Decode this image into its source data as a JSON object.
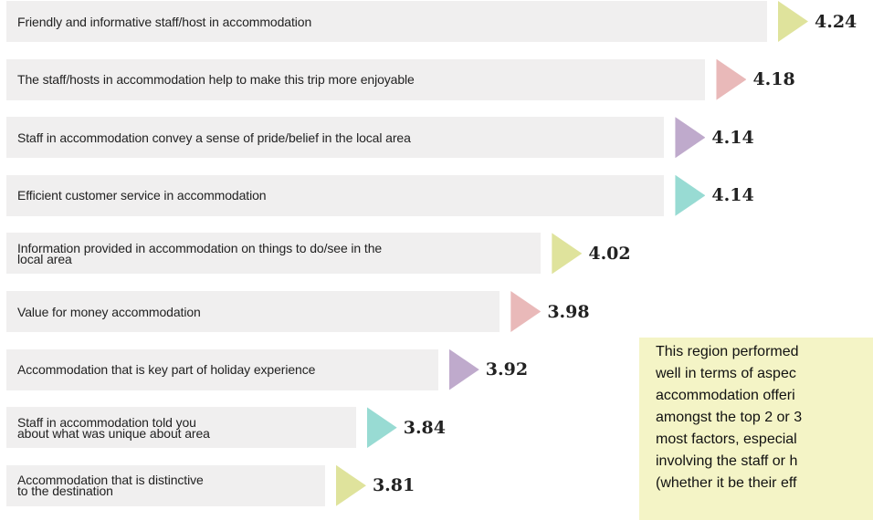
{
  "chart_data": {
    "type": "bar",
    "orientation": "horizontal",
    "categories": [
      "Friendly and informative staff/host in accommodation",
      "The staff/hosts in accommodation help to make this trip more enjoyable",
      "Staff in accommodation convey a sense of pride/belief in the local area",
      "Efficient customer service in accommodation",
      "Information provided in accommodation on things to do/see in the\nlocal area",
      "Value for money accommodation",
      "Accommodation that is key part of holiday experience",
      "Staff in accommodation told you\nabout what was unique about area",
      "Accommodation that is distinctive\nto the destination"
    ],
    "values": [
      4.24,
      4.18,
      4.14,
      4.14,
      4.02,
      3.98,
      3.92,
      3.84,
      3.81
    ],
    "colors": [
      "#dfe39c",
      "#e9b9b9",
      "#bfaacc",
      "#98dbd3",
      "#dfe39c",
      "#e9b9b9",
      "#bfaacc",
      "#98dbd3",
      "#dfe39c"
    ],
    "xlim": [
      3.5,
      4.24
    ],
    "annotation": [
      "This region performed",
      "well in terms of aspec",
      "accommodation offeri",
      "amongst the top 2 or 3",
      "most factors, especial",
      "involving the staff or h",
      "(whether it be their eff"
    ]
  }
}
